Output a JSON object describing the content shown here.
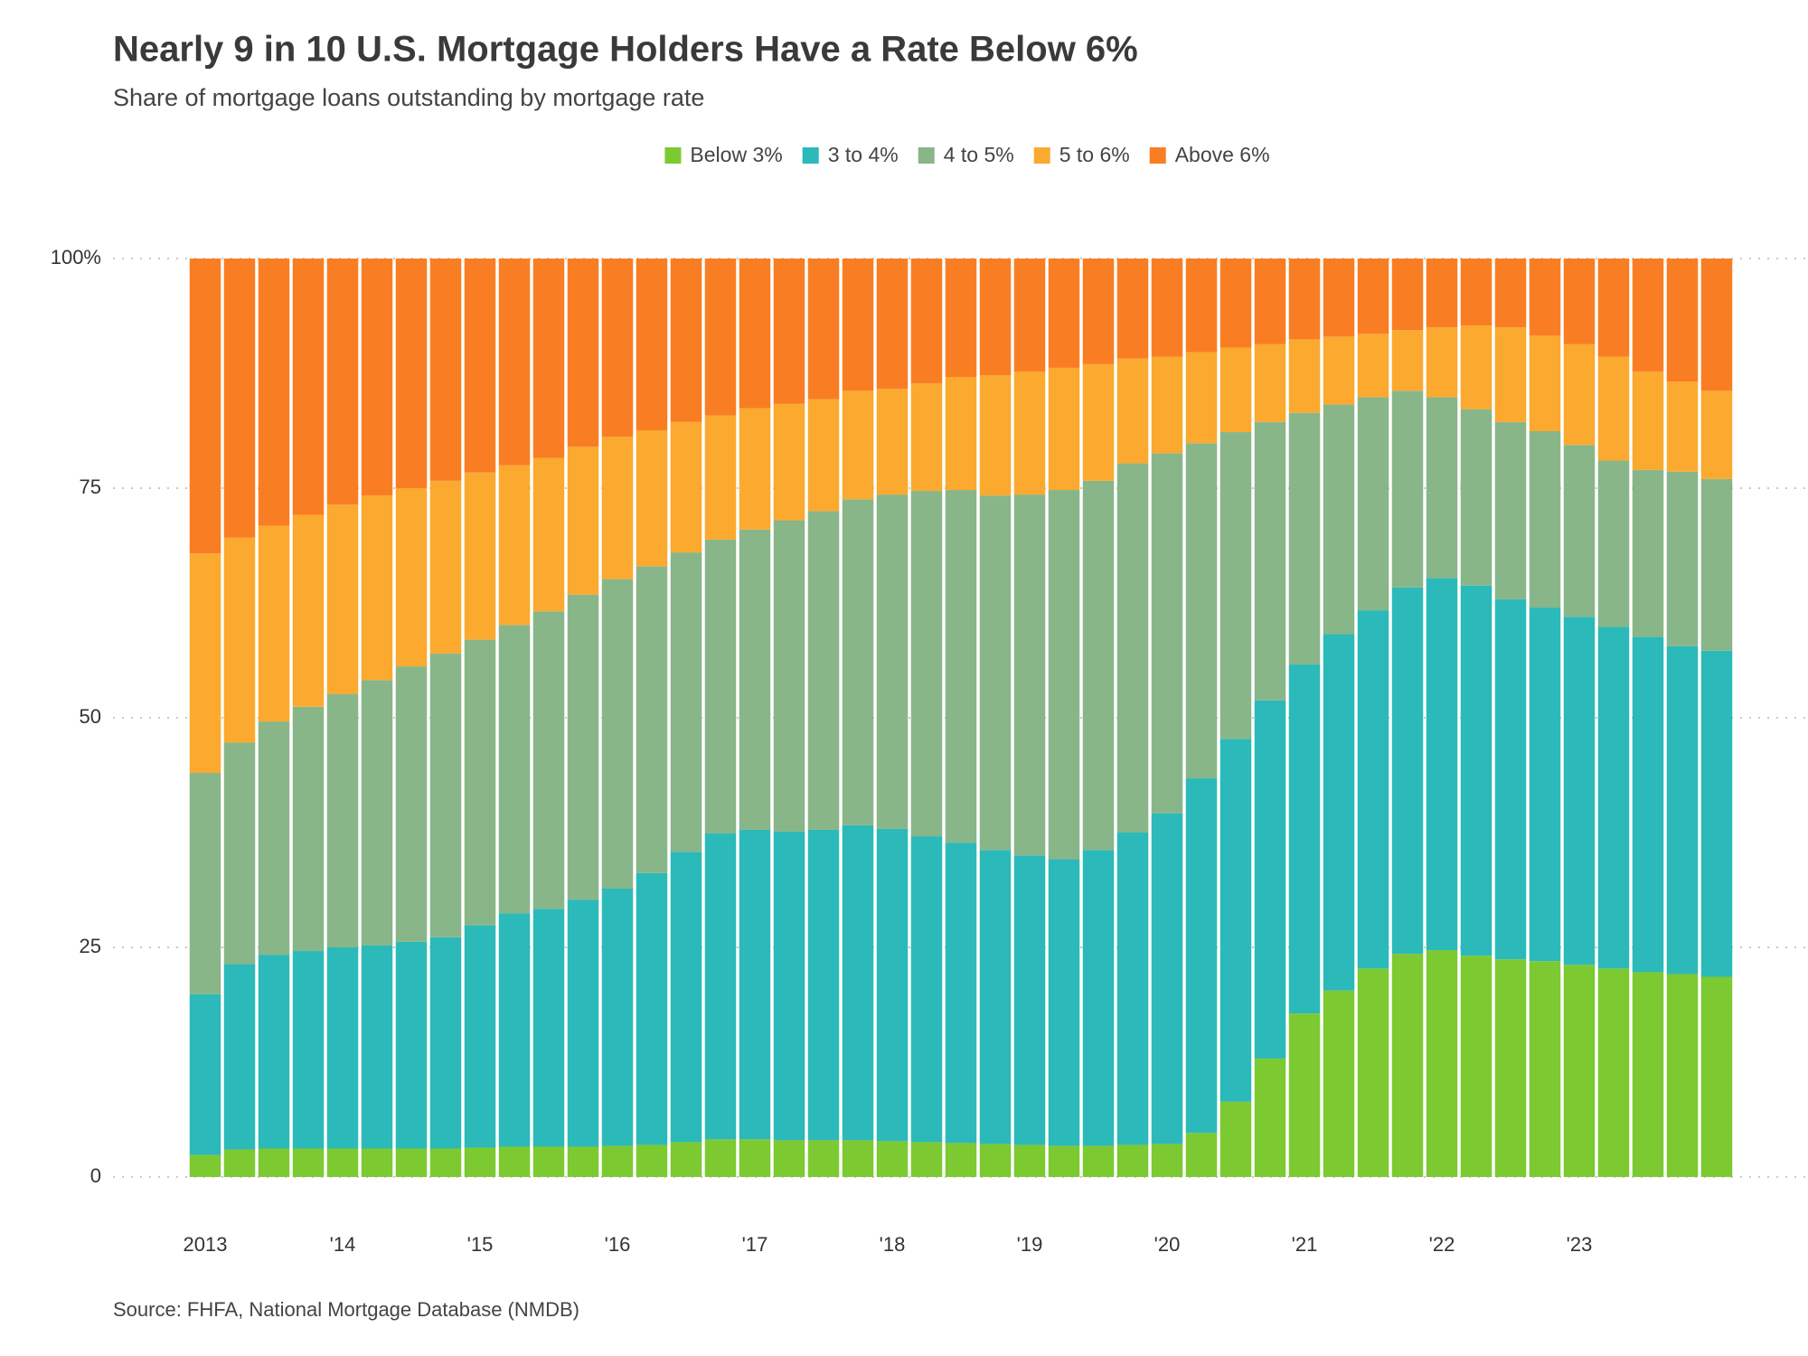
{
  "chart_data": {
    "type": "stacked-bar",
    "title": "Nearly 9 in 10 U.S. Mortgage Holders Have a Rate Below 6%",
    "subtitle": "Share of mortgage loans outstanding by mortgage rate",
    "source": "Source: FHFA, National Mortgage Database (NMDB)",
    "categories": [
      "2013",
      null,
      null,
      null,
      "'14",
      null,
      null,
      null,
      "'15",
      null,
      null,
      null,
      "'16",
      null,
      null,
      null,
      "'17",
      null,
      null,
      null,
      "'18",
      null,
      null,
      null,
      "'19",
      null,
      null,
      null,
      "'20",
      null,
      null,
      null,
      "'21",
      null,
      null,
      null,
      "'22",
      null,
      null,
      null,
      "'23",
      null,
      null,
      null,
      null
    ],
    "series": [
      {
        "name": "Below 3%",
        "color": "#7dc932",
        "values": [
          2.4,
          3.0,
          3.1,
          3.1,
          3.1,
          3.1,
          3.1,
          3.1,
          3.2,
          3.3,
          3.3,
          3.3,
          3.4,
          3.5,
          3.8,
          4.1,
          4.1,
          4.0,
          4.0,
          4.0,
          3.9,
          3.8,
          3.7,
          3.6,
          3.5,
          3.4,
          3.4,
          3.5,
          3.6,
          4.8,
          8.2,
          12.9,
          17.8,
          20.3,
          22.7,
          24.3,
          24.7,
          24.1,
          23.7,
          23.5,
          23.1,
          22.7,
          22.3,
          22.1,
          21.8
        ]
      },
      {
        "name": "3 to 4%",
        "color": "#2cb9b9",
        "values": [
          17.5,
          20.2,
          21.1,
          21.5,
          21.9,
          22.1,
          22.5,
          23.0,
          24.2,
          25.4,
          25.9,
          26.9,
          28.0,
          29.6,
          31.6,
          33.3,
          33.7,
          33.6,
          33.8,
          34.3,
          34.0,
          33.3,
          32.7,
          32.0,
          31.5,
          31.2,
          32.2,
          34.0,
          36.0,
          38.6,
          39.5,
          39.0,
          38.0,
          38.8,
          39.0,
          39.9,
          40.5,
          40.3,
          39.2,
          38.5,
          37.9,
          37.2,
          36.5,
          35.7,
          35.5
        ]
      },
      {
        "name": "4 to 5%",
        "color": "#88b689",
        "values": [
          24.1,
          24.1,
          25.4,
          26.6,
          27.6,
          28.9,
          30.0,
          30.9,
          31.1,
          31.4,
          32.4,
          33.2,
          33.7,
          33.4,
          32.6,
          32.0,
          32.7,
          33.9,
          34.7,
          35.5,
          36.4,
          37.6,
          38.4,
          38.6,
          39.3,
          40.2,
          40.2,
          40.2,
          39.2,
          36.5,
          33.4,
          30.3,
          27.4,
          25.0,
          23.2,
          21.4,
          19.7,
          19.2,
          19.3,
          19.2,
          18.7,
          18.1,
          18.2,
          19.0,
          18.7
        ]
      },
      {
        "name": "5 to 6%",
        "color": "#fba92f",
        "values": [
          23.9,
          22.3,
          21.3,
          20.9,
          20.6,
          20.1,
          19.4,
          18.8,
          18.2,
          17.4,
          16.7,
          16.1,
          15.5,
          14.8,
          14.2,
          13.5,
          13.2,
          12.7,
          12.2,
          11.8,
          11.5,
          11.7,
          12.3,
          13.1,
          13.4,
          13.3,
          12.7,
          11.4,
          10.5,
          9.9,
          9.2,
          8.5,
          8.0,
          7.4,
          6.9,
          6.6,
          7.6,
          9.1,
          10.3,
          10.4,
          11.0,
          11.3,
          10.7,
          9.8,
          9.6
        ]
      },
      {
        "name": "Above 6%",
        "color": "#f97e23",
        "values": [
          32.1,
          30.4,
          29.1,
          27.9,
          26.8,
          25.8,
          25.0,
          24.2,
          23.3,
          22.5,
          21.7,
          20.5,
          19.4,
          18.7,
          17.8,
          17.1,
          16.3,
          15.8,
          15.3,
          14.4,
          14.2,
          13.6,
          12.9,
          12.7,
          12.3,
          11.9,
          11.5,
          10.9,
          10.7,
          10.2,
          9.7,
          9.3,
          8.8,
          8.5,
          8.2,
          7.8,
          7.5,
          7.3,
          7.5,
          8.4,
          9.3,
          10.7,
          12.3,
          13.4,
          14.4
        ]
      }
    ],
    "ylim": [
      0,
      100
    ],
    "yticks": [
      0,
      25,
      50,
      75,
      {
        "value": 100,
        "label": "100%"
      }
    ],
    "grid": true
  }
}
